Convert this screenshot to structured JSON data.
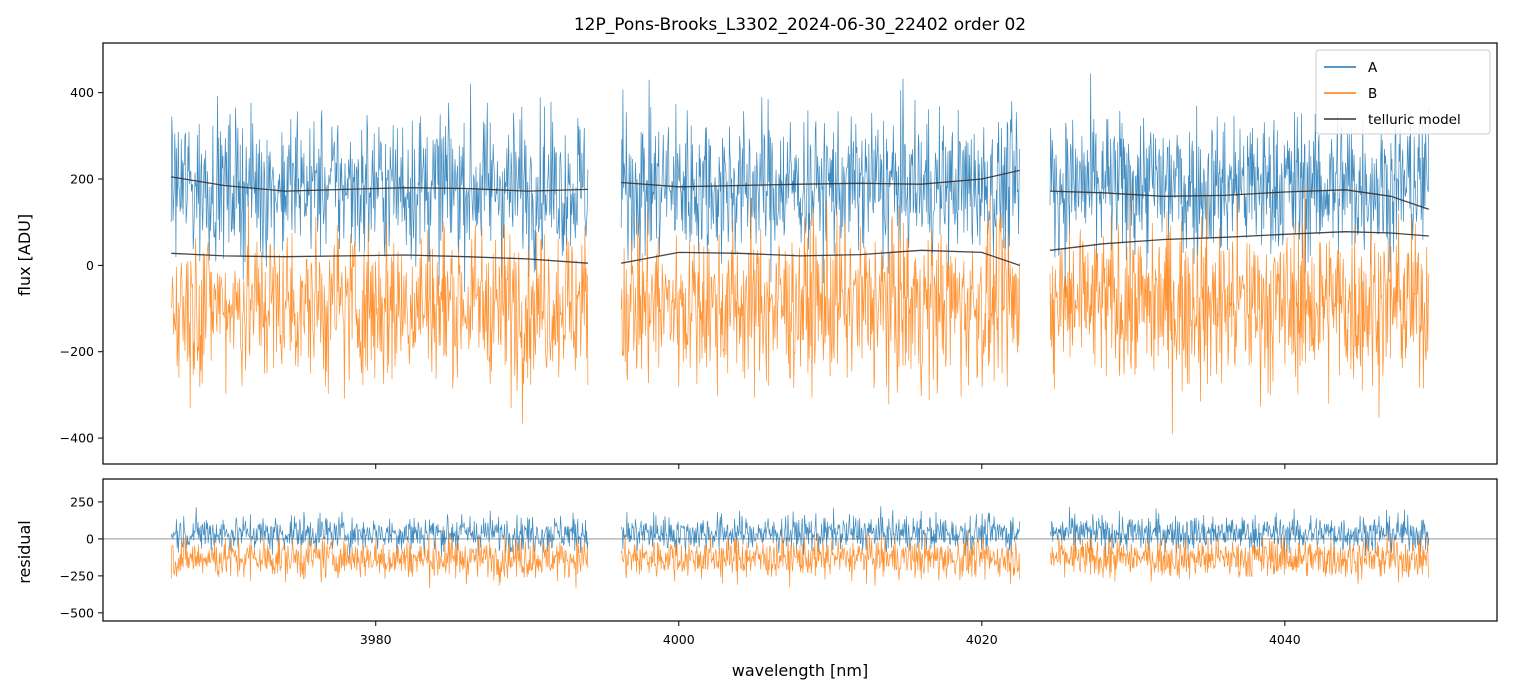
{
  "chart_data": [
    {
      "type": "line",
      "title": "12P_Pons-Brooks_L3302_2024-06-30_22402  order 02",
      "xlabel": "",
      "ylabel": "flux [ADU]",
      "xlim": [
        3962,
        4054
      ],
      "ylim": [
        -460,
        515
      ],
      "yticks": [
        -400,
        -200,
        0,
        200,
        400
      ],
      "yticklabels": [
        "−400",
        "−200",
        "0",
        "200",
        "400"
      ],
      "xticks": [
        3980,
        4000,
        4020,
        4040
      ],
      "legend": {
        "placement": "top-right",
        "entries": [
          {
            "label": "A",
            "color": "#1f77b4"
          },
          {
            "label": "B",
            "color": "#ff7f0e"
          },
          {
            "label": "telluric model",
            "color": "#333333"
          }
        ]
      },
      "segments": [
        [
          3966.5,
          3994.0
        ],
        [
          3996.2,
          4022.5
        ],
        [
          4024.5,
          4049.5
        ]
      ],
      "series": [
        {
          "name": "A",
          "color": "#1f77b4",
          "baseline": 185,
          "spread": 210,
          "note_shape": "noisy spectrum"
        },
        {
          "name": "B",
          "color": "#ff7f0e",
          "baseline": -90,
          "spread": 230,
          "note_shape": "noisy spectrum"
        },
        {
          "name": "telluric model",
          "color": "#333333",
          "curves": [
            {
              "x": [
                3966.5,
                3970,
                3974,
                3978,
                3982,
                3986,
                3990,
                3994.0
              ],
              "y": [
                205,
                185,
                172,
                176,
                180,
                178,
                172,
                176
              ]
            },
            {
              "x": [
                3966.5,
                3970,
                3974,
                3978,
                3982,
                3986,
                3990,
                3994.0
              ],
              "y": [
                28,
                22,
                20,
                22,
                24,
                20,
                15,
                5
              ]
            },
            {
              "x": [
                3996.2,
                4000,
                4004,
                4008,
                4012,
                4016,
                4020,
                4022.5
              ],
              "y": [
                192,
                182,
                185,
                188,
                190,
                188,
                200,
                220
              ]
            },
            {
              "x": [
                3996.2,
                4000,
                4004,
                4008,
                4012,
                4016,
                4020,
                4022.5
              ],
              "y": [
                5,
                30,
                28,
                22,
                25,
                35,
                30,
                0
              ]
            },
            {
              "x": [
                4024.5,
                4028,
                4032,
                4036,
                4040,
                4044,
                4047,
                4049.5
              ],
              "y": [
                172,
                168,
                160,
                162,
                170,
                175,
                160,
                130
              ]
            },
            {
              "x": [
                4024.5,
                4028,
                4032,
                4036,
                4040,
                4044,
                4047,
                4049.5
              ],
              "y": [
                35,
                50,
                60,
                65,
                72,
                78,
                75,
                68
              ]
            }
          ]
        }
      ]
    },
    {
      "type": "line",
      "title": "",
      "xlabel": "wavelength [nm]",
      "ylabel": "residual",
      "xlim": [
        3962,
        4054
      ],
      "ylim": [
        -555,
        405
      ],
      "yticks": [
        -500,
        -250,
        0,
        250
      ],
      "yticklabels": [
        "−500",
        "−250",
        "0",
        "250"
      ],
      "xticks": [
        3980,
        4000,
        4020,
        4040
      ],
      "xticklabels": [
        "3980",
        "4000",
        "4020",
        "4040"
      ],
      "zero_line": 0,
      "segments": [
        [
          3966.5,
          3994.0
        ],
        [
          3996.2,
          4022.5
        ],
        [
          4024.5,
          4049.5
        ]
      ],
      "series": [
        {
          "name": "A",
          "color": "#1f77b4",
          "baseline": 40,
          "spread": 150
        },
        {
          "name": "B",
          "color": "#ff7f0e",
          "baseline": -130,
          "spread": 170
        }
      ]
    }
  ]
}
